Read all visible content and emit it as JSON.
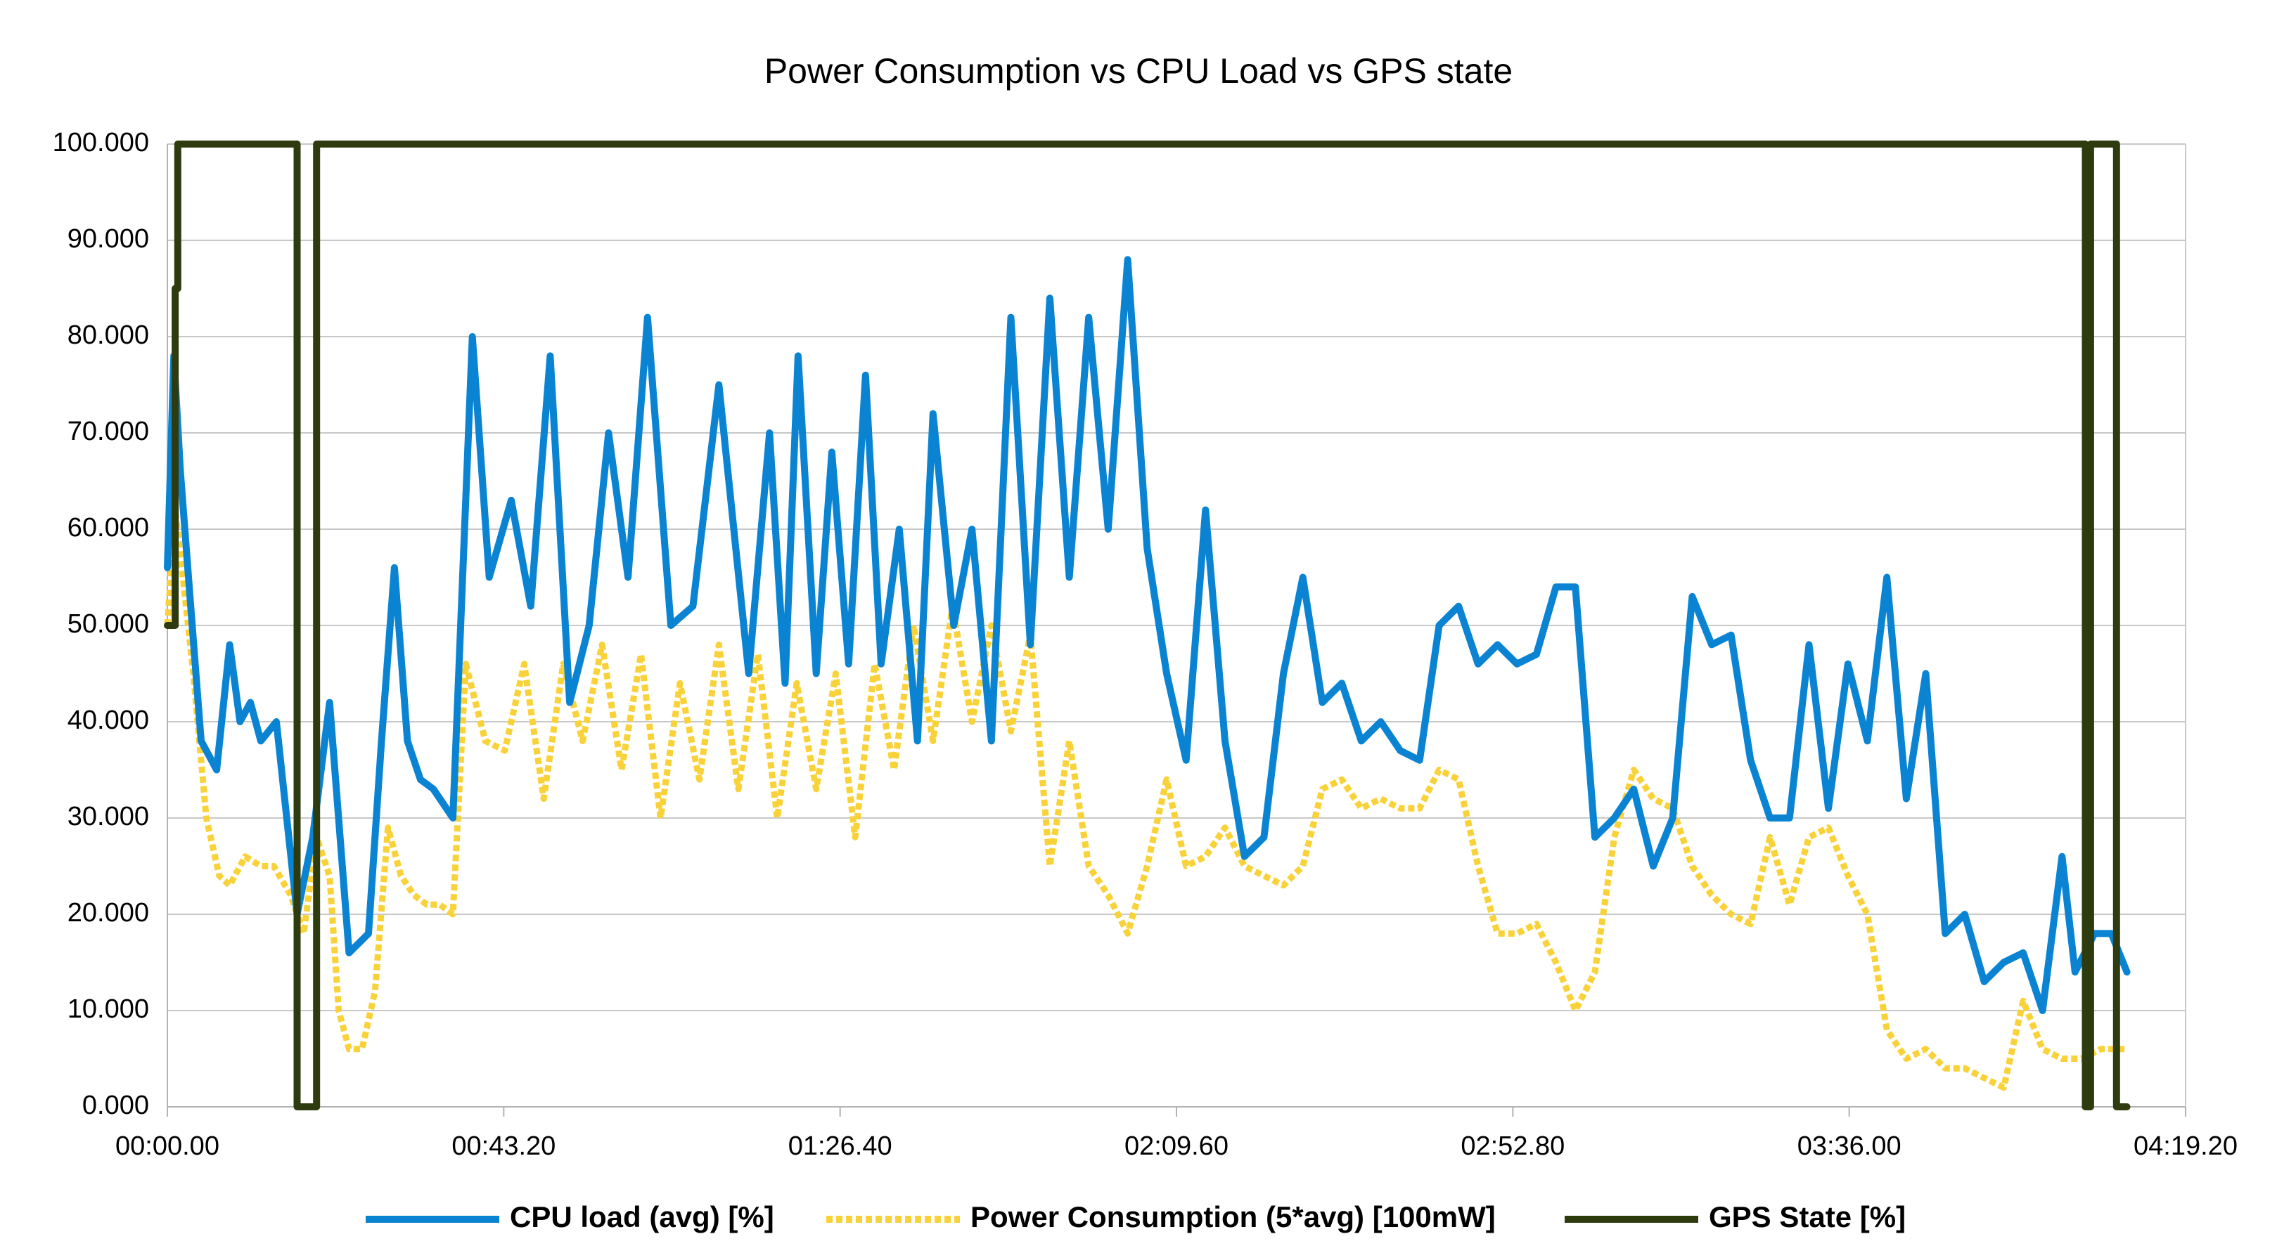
{
  "chart_data": {
    "type": "line",
    "title": "Power Consumption vs CPU Load vs GPS state",
    "xlabel": "",
    "ylabel": "",
    "xlim": [
      0,
      15552
    ],
    "ylim": [
      0,
      100
    ],
    "x_unit": "seconds (mm:ss.cs)",
    "x_tick_labels": [
      "00:00.00",
      "00:43.20",
      "01:26.40",
      "02:09.60",
      "02:52.80",
      "03:36.00",
      "04:19.20"
    ],
    "y_tick_labels": [
      "0.000",
      "10.000",
      "20.000",
      "30.000",
      "40.000",
      "50.000",
      "60.000",
      "70.000",
      "80.000",
      "90.000",
      "100.000"
    ],
    "grid": true,
    "legend_position": "bottom",
    "series": [
      {
        "name": "CPU load (avg) [%]",
        "color": "#0a84d2",
        "style": "solid",
        "x": [
          0,
          50,
          100,
          180,
          260,
          380,
          480,
          560,
          640,
          720,
          840,
          1000,
          1120,
          1250,
          1400,
          1550,
          1650,
          1750,
          1850,
          1950,
          2050,
          2200,
          2350,
          2480,
          2650,
          2800,
          2950,
          3100,
          3250,
          3400,
          3550,
          3700,
          3880,
          4050,
          4250,
          4480,
          4640,
          4760,
          4860,
          5000,
          5120,
          5250,
          5380,
          5500,
          5640,
          5780,
          5900,
          6060,
          6200,
          6350,
          6500,
          6650,
          6800,
          6950,
          7100,
          7250,
          7400,
          7550,
          7700,
          7850,
          8000,
          8150,
          8300,
          8450,
          8600,
          8750,
          8900,
          9050,
          9200,
          9350,
          9500,
          9650,
          9800,
          9950,
          10100,
          10250,
          10400,
          10550,
          10700,
          10850,
          11000,
          11150,
          11300,
          11450,
          11600,
          11750,
          11900,
          12050,
          12200,
          12350,
          12500,
          12650,
          12800,
          12950,
          13100,
          13250,
          13400,
          13550,
          13700,
          13850,
          14000,
          14150,
          14300,
          14450,
          14600,
          14700,
          14850,
          14980,
          15100
        ],
        "y": [
          56,
          78,
          66,
          52,
          38,
          35,
          48,
          40,
          42,
          38,
          40,
          20,
          28,
          42,
          16,
          18,
          38,
          56,
          38,
          34,
          33,
          30,
          80,
          55,
          63,
          52,
          78,
          42,
          50,
          70,
          55,
          82,
          50,
          52,
          75,
          45,
          70,
          44,
          78,
          45,
          68,
          46,
          76,
          46,
          60,
          38,
          72,
          50,
          60,
          38,
          82,
          48,
          84,
          55,
          82,
          60,
          88,
          58,
          45,
          36,
          62,
          38,
          26,
          28,
          45,
          55,
          42,
          44,
          38,
          40,
          37,
          36,
          50,
          52,
          46,
          48,
          46,
          47,
          54,
          54,
          28,
          30,
          33,
          25,
          30,
          53,
          48,
          49,
          36,
          30,
          30,
          48,
          31,
          46,
          38,
          55,
          32,
          45,
          18,
          20,
          13,
          15,
          16,
          10,
          26,
          14,
          18,
          18,
          14
        ]
      },
      {
        "name": "Power Consumption (5*avg) [100mW]",
        "color": "#f9d23a",
        "style": "dotted",
        "x": [
          0,
          60,
          120,
          200,
          300,
          400,
          480,
          600,
          720,
          820,
          950,
          1050,
          1150,
          1250,
          1320,
          1400,
          1500,
          1600,
          1700,
          1800,
          1900,
          2000,
          2100,
          2200,
          2300,
          2450,
          2600,
          2750,
          2900,
          3050,
          3200,
          3350,
          3500,
          3650,
          3800,
          3950,
          4100,
          4250,
          4400,
          4550,
          4700,
          4850,
          5000,
          5150,
          5300,
          5450,
          5600,
          5750,
          5900,
          6050,
          6200,
          6350,
          6500,
          6650,
          6800,
          6950,
          7100,
          7250,
          7400,
          7550,
          7700,
          7850,
          8000,
          8150,
          8300,
          8450,
          8600,
          8750,
          8900,
          9050,
          9200,
          9350,
          9500,
          9650,
          9800,
          9950,
          10100,
          10250,
          10400,
          10550,
          10700,
          10850,
          11000,
          11150,
          11300,
          11450,
          11600,
          11750,
          11900,
          12050,
          12200,
          12350,
          12500,
          12650,
          12800,
          12950,
          13100,
          13250,
          13400,
          13550,
          13700,
          13850,
          14000,
          14150,
          14300,
          14450,
          14600,
          14750,
          14900,
          15100
        ],
        "y": [
          50,
          62,
          55,
          45,
          30,
          24,
          23,
          26,
          25,
          25,
          22,
          18,
          28,
          24,
          10,
          6,
          6,
          12,
          29,
          24,
          22,
          21,
          21,
          20,
          46,
          38,
          37,
          46,
          32,
          46,
          38,
          48,
          35,
          47,
          30,
          44,
          34,
          48,
          33,
          47,
          30,
          44,
          33,
          45,
          28,
          46,
          35,
          50,
          38,
          52,
          40,
          50,
          39,
          49,
          25,
          38,
          25,
          22,
          18,
          25,
          34,
          25,
          26,
          29,
          25,
          24,
          23,
          25,
          33,
          34,
          31,
          32,
          31,
          31,
          35,
          34,
          25,
          18,
          18,
          19,
          15,
          10,
          14,
          28,
          35,
          32,
          31,
          25,
          22,
          20,
          19,
          28,
          21,
          28,
          29,
          24,
          20,
          8,
          5,
          6,
          4,
          4,
          3,
          2,
          11,
          6,
          5,
          5,
          6,
          6
        ]
      },
      {
        "name": "GPS State [%]",
        "color": "#2e3b0e",
        "style": "solid",
        "x": [
          0,
          60,
          60,
          80,
          80,
          1000,
          1000,
          1100,
          1100,
          1150,
          1150,
          14780,
          14780,
          14820,
          14820,
          15020,
          15020,
          15100
        ],
        "y": [
          50,
          50,
          85,
          85,
          100,
          100,
          0,
          0,
          0,
          0,
          100,
          100,
          0,
          0,
          100,
          100,
          0,
          0
        ]
      }
    ]
  }
}
